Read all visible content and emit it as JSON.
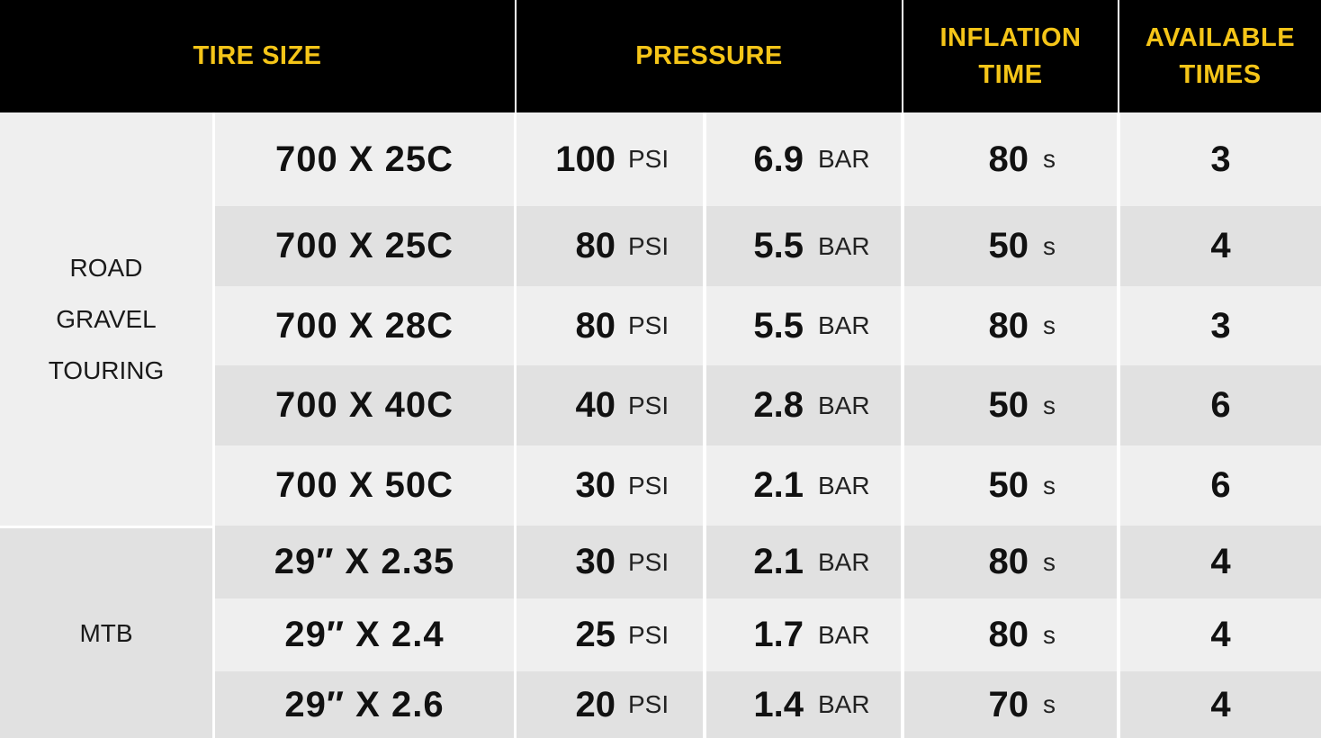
{
  "colors": {
    "header_bg": "#000000",
    "header_text": "#f5c518",
    "row_light": "#efefef",
    "row_dark": "#e1e1e1",
    "cell_text": "#111111",
    "divider": "#ffffff"
  },
  "headers": {
    "tire_size": "TIRE SIZE",
    "pressure": "PRESSURE",
    "inflation_time": [
      "INFLATION",
      "TIME"
    ],
    "available_times": [
      "AVAILABLE",
      "TIMES"
    ]
  },
  "units": {
    "psi": "PSI",
    "bar": "BAR",
    "seconds": "s"
  },
  "categories": [
    {
      "lines": [
        "ROAD",
        "GRAVEL",
        "TOURING"
      ],
      "rows": 5
    },
    {
      "lines": [
        "MTB"
      ],
      "rows": 3
    }
  ],
  "rows": [
    {
      "size": "700 X 25C",
      "psi": "100",
      "bar": "6.9",
      "time": "80",
      "available": "3"
    },
    {
      "size": "700 X 25C",
      "psi": "80",
      "bar": "5.5",
      "time": "50",
      "available": "4"
    },
    {
      "size": "700 X 28C",
      "psi": "80",
      "bar": "5.5",
      "time": "80",
      "available": "3"
    },
    {
      "size": "700 X 40C",
      "psi": "40",
      "bar": "2.8",
      "time": "50",
      "available": "6"
    },
    {
      "size": "700 X 50C",
      "psi": "30",
      "bar": "2.1",
      "time": "50",
      "available": "6"
    },
    {
      "size": "29″ X 2.35",
      "psi": "30",
      "bar": "2.1",
      "time": "80",
      "available": "4"
    },
    {
      "size": "29″ X 2.4",
      "psi": "25",
      "bar": "1.7",
      "time": "80",
      "available": "4"
    },
    {
      "size": "29″ X 2.6",
      "psi": "20",
      "bar": "1.4",
      "time": "70",
      "available": "4"
    }
  ]
}
